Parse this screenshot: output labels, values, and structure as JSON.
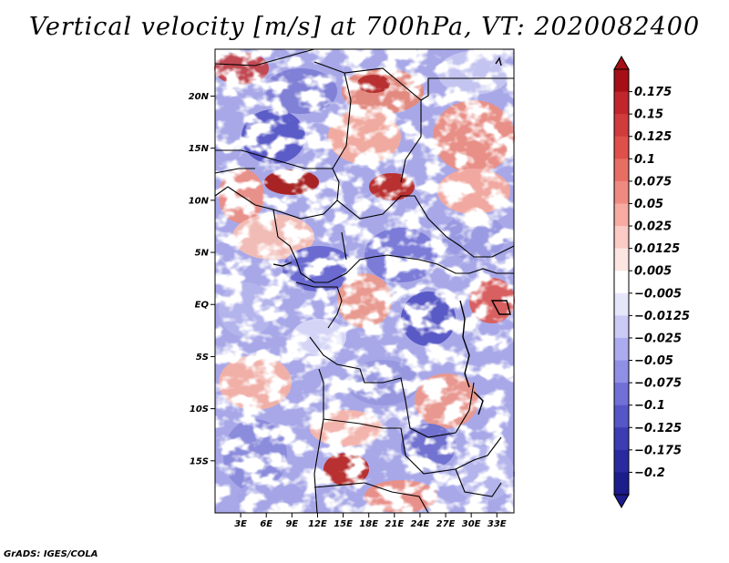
{
  "title": "Vertical velocity [m/s] at 700hPa, VT: 2020082400",
  "credit": "GrADS: IGES/COLA",
  "map": {
    "variable": "Vertical velocity",
    "units": "m/s",
    "level": "700hPa",
    "valid_time": "2020082400",
    "lon_range": [
      0,
      35
    ],
    "lat_range": [
      -20,
      24.5
    ],
    "lat_ticks": [
      {
        "value": 20,
        "label": "20N"
      },
      {
        "value": 15,
        "label": "15N"
      },
      {
        "value": 10,
        "label": "10N"
      },
      {
        "value": 5,
        "label": "5N"
      },
      {
        "value": 0,
        "label": "EQ"
      },
      {
        "value": -5,
        "label": "5S"
      },
      {
        "value": -10,
        "label": "10S"
      },
      {
        "value": -15,
        "label": "15S"
      }
    ],
    "lon_ticks": [
      {
        "value": 3,
        "label": "3E"
      },
      {
        "value": 6,
        "label": "6E"
      },
      {
        "value": 9,
        "label": "9E"
      },
      {
        "value": 12,
        "label": "12E"
      },
      {
        "value": 15,
        "label": "15E"
      },
      {
        "value": 18,
        "label": "18E"
      },
      {
        "value": 21,
        "label": "21E"
      },
      {
        "value": 24,
        "label": "24E"
      },
      {
        "value": 27,
        "label": "27E"
      },
      {
        "value": 30,
        "label": "30E"
      },
      {
        "value": 33,
        "label": "33E"
      }
    ]
  },
  "colorbar": {
    "labels": [
      "0.175",
      "0.15",
      "0.125",
      "0.1",
      "0.075",
      "0.05",
      "0.025",
      "0.0125",
      "0.005",
      "−0.005",
      "−0.0125",
      "−0.025",
      "−0.05",
      "−0.075",
      "−0.1",
      "−0.125",
      "−0.175",
      "−0.2"
    ],
    "colors": [
      "#a50f15",
      "#c0262c",
      "#d03b3b",
      "#e0504a",
      "#e86e64",
      "#f08a80",
      "#f6aaa2",
      "#fbcac4",
      "#fde6e2",
      "#ffffff",
      "#e6e6fb",
      "#cacaf5",
      "#ababef",
      "#8f8fe6",
      "#7070d8",
      "#5656c8",
      "#3c3cb4",
      "#2a2aa0",
      "#1c1c8c"
    ]
  }
}
